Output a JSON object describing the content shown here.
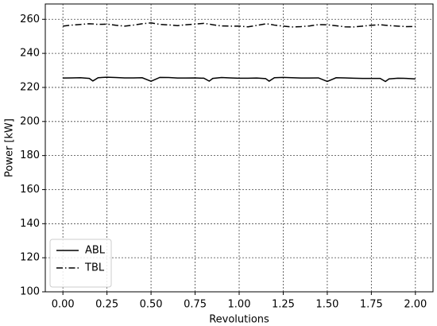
{
  "chart_data": {
    "type": "line",
    "xlabel": "Revolutions",
    "ylabel": "Power [kW]",
    "x": [
      0,
      0.05,
      0.1,
      0.15,
      0.17,
      0.2,
      0.25,
      0.3,
      0.35,
      0.4,
      0.45,
      0.5,
      0.55,
      0.6,
      0.65,
      0.7,
      0.75,
      0.8,
      0.83,
      0.85,
      0.9,
      0.95,
      1.0,
      1.05,
      1.1,
      1.15,
      1.17,
      1.2,
      1.25,
      1.3,
      1.35,
      1.4,
      1.45,
      1.5,
      1.55,
      1.6,
      1.65,
      1.7,
      1.75,
      1.8,
      1.83,
      1.85,
      1.9,
      1.95,
      2.0
    ],
    "series": [
      {
        "name": "ABL",
        "color": "#000000",
        "linestyle": "solid",
        "values": [
          225.5,
          225.6,
          225.7,
          225.3,
          223.8,
          225.7,
          226.0,
          225.8,
          225.6,
          225.6,
          225.7,
          223.6,
          225.9,
          225.8,
          225.5,
          225.5,
          225.6,
          225.4,
          223.7,
          225.3,
          225.8,
          225.6,
          225.4,
          225.4,
          225.5,
          225.2,
          223.7,
          225.7,
          225.9,
          225.7,
          225.5,
          225.5,
          225.6,
          223.5,
          225.7,
          225.6,
          225.4,
          225.3,
          225.3,
          225.3,
          223.5,
          225.0,
          225.4,
          225.3,
          225.0
        ]
      },
      {
        "name": "TBL",
        "color": "#000000",
        "linestyle": "dashdot",
        "values": [
          256.0,
          256.6,
          257.0,
          257.4,
          257.3,
          257.0,
          257.2,
          256.5,
          256.0,
          256.6,
          257.4,
          257.9,
          257.0,
          256.7,
          256.3,
          256.8,
          257.2,
          257.6,
          257.2,
          256.8,
          256.1,
          256.0,
          256.0,
          255.6,
          256.4,
          257.3,
          257.2,
          256.6,
          256.0,
          255.5,
          255.7,
          256.1,
          256.9,
          256.8,
          256.2,
          255.6,
          255.5,
          256.0,
          256.5,
          256.8,
          256.5,
          256.3,
          256.0,
          255.7,
          255.8
        ]
      }
    ],
    "xlim": [
      -0.1,
      2.1
    ],
    "xticks": [
      {
        "value": 0,
        "label": "0.00"
      },
      {
        "value": 0.25,
        "label": "0.25"
      },
      {
        "value": 0.5,
        "label": "0.50"
      },
      {
        "value": 0.75,
        "label": "0.75"
      },
      {
        "value": 1,
        "label": "1.00"
      },
      {
        "value": 1.25,
        "label": "1.25"
      },
      {
        "value": 1.5,
        "label": "1.50"
      },
      {
        "value": 1.75,
        "label": "1.75"
      },
      {
        "value": 2,
        "label": "2.00"
      }
    ],
    "ylim": [
      100,
      269
    ],
    "yticks": [
      100,
      120,
      140,
      160,
      180,
      200,
      220,
      240,
      260
    ],
    "grid": true,
    "legend": "lower left"
  }
}
